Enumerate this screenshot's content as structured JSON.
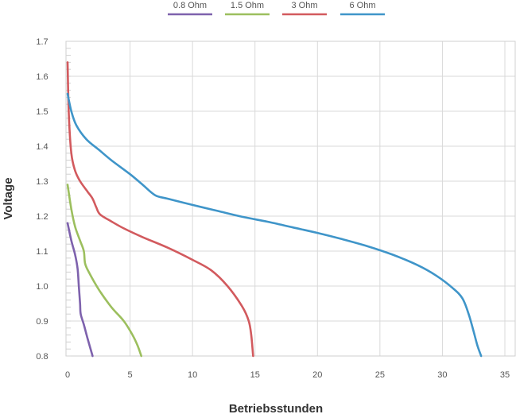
{
  "chart_data": {
    "type": "line",
    "title": "",
    "xlabel": "Betriebsstunden",
    "ylabel": "Voltage",
    "xlim": [
      0,
      35
    ],
    "ylim": [
      0.8,
      1.7
    ],
    "x_ticks": [
      "0",
      "5",
      "10",
      "15",
      "20",
      "25",
      "30",
      "35"
    ],
    "y_ticks": [
      "0.8",
      "0.9",
      "1.0",
      "1.1",
      "1.2",
      "1.3",
      "1.4",
      "1.5",
      "1.6",
      "1.7"
    ],
    "grid": true,
    "legend_position": "top",
    "series": [
      {
        "name": "0.8 Ohm",
        "color": "#7e62ad",
        "points": [
          [
            0.0,
            1.18
          ],
          [
            0.3,
            1.13
          ],
          [
            0.6,
            1.09
          ],
          [
            0.8,
            1.05
          ],
          [
            0.9,
            1.0
          ],
          [
            1.0,
            0.95
          ],
          [
            1.05,
            0.92
          ],
          [
            1.3,
            0.89
          ],
          [
            1.6,
            0.85
          ],
          [
            2.0,
            0.8
          ]
        ]
      },
      {
        "name": "1.5 Ohm",
        "color": "#9cbf5e",
        "points": [
          [
            0.0,
            1.29
          ],
          [
            0.3,
            1.22
          ],
          [
            0.6,
            1.17
          ],
          [
            1.0,
            1.13
          ],
          [
            1.3,
            1.1
          ],
          [
            1.4,
            1.065
          ],
          [
            1.7,
            1.04
          ],
          [
            2.5,
            0.99
          ],
          [
            3.5,
            0.94
          ],
          [
            4.5,
            0.9
          ],
          [
            5.2,
            0.86
          ],
          [
            5.6,
            0.83
          ],
          [
            5.9,
            0.8
          ]
        ]
      },
      {
        "name": "3 Ohm",
        "color": "#d25a5e",
        "points": [
          [
            0.0,
            1.64
          ],
          [
            0.1,
            1.49
          ],
          [
            0.3,
            1.38
          ],
          [
            0.6,
            1.33
          ],
          [
            1.0,
            1.3
          ],
          [
            1.6,
            1.27
          ],
          [
            2.0,
            1.25
          ],
          [
            2.3,
            1.225
          ],
          [
            2.6,
            1.205
          ],
          [
            3.5,
            1.185
          ],
          [
            4.5,
            1.165
          ],
          [
            6.0,
            1.14
          ],
          [
            8.0,
            1.11
          ],
          [
            10.0,
            1.075
          ],
          [
            11.5,
            1.045
          ],
          [
            12.8,
            1.0
          ],
          [
            14.0,
            0.94
          ],
          [
            14.5,
            0.9
          ],
          [
            14.7,
            0.86
          ],
          [
            14.85,
            0.8
          ]
        ]
      },
      {
        "name": "6 Ohm",
        "color": "#3f95c9",
        "points": [
          [
            0.0,
            1.55
          ],
          [
            0.3,
            1.5
          ],
          [
            0.7,
            1.46
          ],
          [
            1.5,
            1.42
          ],
          [
            2.5,
            1.39
          ],
          [
            3.5,
            1.36
          ],
          [
            5.0,
            1.32
          ],
          [
            6.0,
            1.29
          ],
          [
            7.0,
            1.26
          ],
          [
            8.0,
            1.25
          ],
          [
            10.0,
            1.232
          ],
          [
            12.0,
            1.215
          ],
          [
            14.0,
            1.198
          ],
          [
            16.0,
            1.184
          ],
          [
            18.0,
            1.168
          ],
          [
            20.0,
            1.152
          ],
          [
            22.0,
            1.134
          ],
          [
            24.0,
            1.114
          ],
          [
            26.0,
            1.09
          ],
          [
            28.0,
            1.06
          ],
          [
            29.5,
            1.03
          ],
          [
            30.8,
            0.995
          ],
          [
            31.6,
            0.965
          ],
          [
            32.1,
            0.92
          ],
          [
            32.5,
            0.87
          ],
          [
            32.8,
            0.83
          ],
          [
            33.1,
            0.8
          ]
        ]
      }
    ]
  }
}
